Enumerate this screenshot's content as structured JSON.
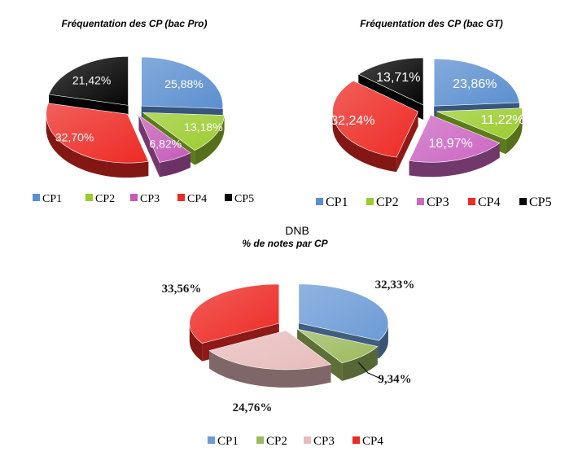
{
  "chart_data": [
    {
      "type": "pie",
      "title": "Fréquentation des CP (bac Pro)",
      "categories": [
        "CP1",
        "CP2",
        "CP3",
        "CP4",
        "CP5"
      ],
      "values": [
        25.88,
        13.18,
        6.82,
        32.7,
        21.42
      ],
      "data_labels": [
        "25,88%",
        "13,18%",
        "6,82%",
        "32,70%",
        "21,42%"
      ],
      "legend": "bottom",
      "colors": [
        "#5b8fd0",
        "#9bcc2e",
        "#c45bb8",
        "#ee2a24",
        "#050505"
      ]
    },
    {
      "type": "pie",
      "title": "Fréquentation des CP (bac GT)",
      "categories": [
        "CP1",
        "CP2",
        "CP3",
        "CP4",
        "CP5"
      ],
      "values": [
        23.86,
        11.22,
        18.97,
        32.24,
        13.71
      ],
      "data_labels": [
        "23,86%",
        "11,22%",
        "18,97%",
        "32,24%",
        "13,71%"
      ],
      "legend": "bottom",
      "colors": [
        "#5b8fd0",
        "#9bcc2e",
        "#cc66c2",
        "#ee2a24",
        "#050505"
      ]
    },
    {
      "type": "pie",
      "title": "DNB",
      "subtitle": "%  de notes par CP",
      "categories": [
        "CP1",
        "CP2",
        "CP3",
        "CP4"
      ],
      "values": [
        32.33,
        9.34,
        24.76,
        33.56
      ],
      "data_labels": [
        "32,33%",
        "9,34%",
        "24,76%",
        "33,56%"
      ],
      "legend": "bottom",
      "colors": [
        "#6c9bd6",
        "#9cba5e",
        "#e8bcbc",
        "#ee2a24"
      ]
    }
  ]
}
